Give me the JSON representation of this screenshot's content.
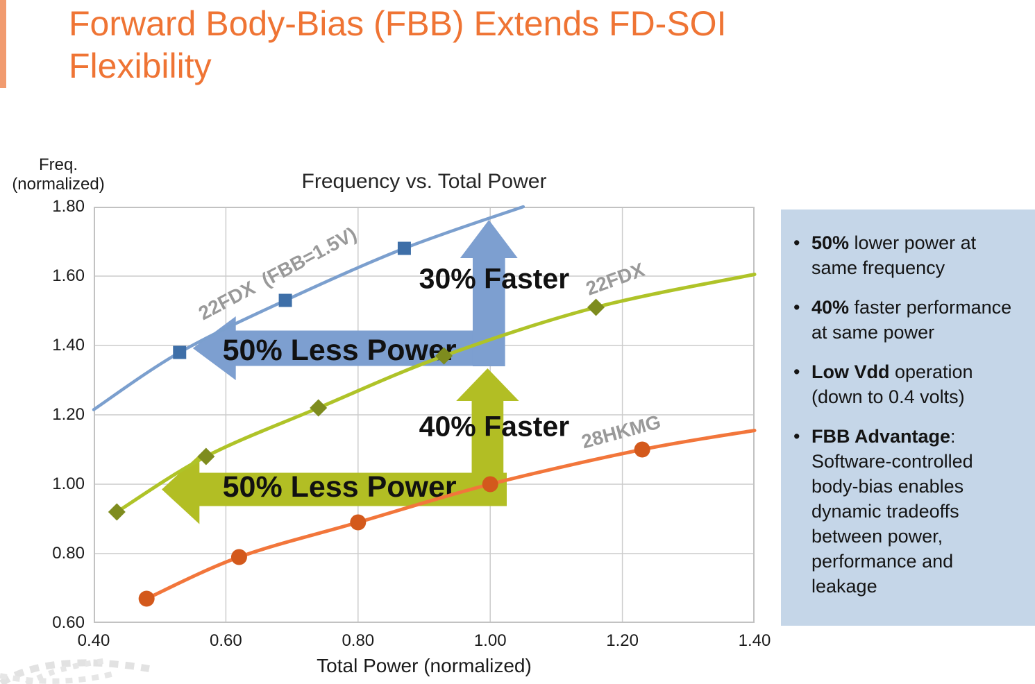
{
  "page": {
    "accent_color": "#F19B6F",
    "background": "#ffffff"
  },
  "title": {
    "line1": "Forward Body-Bias (FBB) Extends FD-SOI",
    "line2": "Flexibility",
    "color": "#EF7434"
  },
  "panel": {
    "bg": "#C5D6E8",
    "bullets": [
      {
        "bold": "50%",
        "rest": " lower power at same frequency"
      },
      {
        "bold": "40%",
        "rest": " faster performance at same power"
      },
      {
        "bold": "Low Vdd",
        "rest": " operation (down to 0.4 volts)"
      },
      {
        "bold": "FBB Advantage",
        "rest": ": Software-controlled body-bias enables dynamic tradeoffs between power, performance and leakage"
      }
    ]
  },
  "chart_data": {
    "type": "line",
    "title": "Frequency vs. Total Power",
    "xlabel": "Total Power (normalized)",
    "ylabel": "Freq. (normalized)",
    "ylabel_lines": [
      "Freq.",
      "(normalized)"
    ],
    "xlim": [
      0.4,
      1.4
    ],
    "ylim": [
      0.6,
      1.8
    ],
    "xticks": [
      "0.40",
      "0.60",
      "0.80",
      "1.00",
      "1.20",
      "1.40"
    ],
    "yticks": [
      "0.60",
      "0.80",
      "1.00",
      "1.20",
      "1.40",
      "1.60",
      "1.80"
    ],
    "grid": true,
    "series": [
      {
        "name": "28HKMG",
        "color": "#F2763B",
        "marker_color": "#D3591C",
        "marker": "circle",
        "width": 5,
        "path": [
          [
            0.48,
            0.67
          ],
          [
            0.62,
            0.79
          ],
          [
            0.8,
            0.89
          ],
          [
            1.0,
            1.0
          ],
          [
            1.23,
            1.1
          ],
          [
            1.4,
            1.155
          ]
        ],
        "markers": [
          [
            0.48,
            0.67
          ],
          [
            0.62,
            0.79
          ],
          [
            0.8,
            0.89
          ],
          [
            1.0,
            1.0
          ],
          [
            1.23,
            1.1
          ]
        ],
        "label": "28HKMG",
        "label_x": 1.198,
        "label_y": 1.152,
        "label_angle": -15
      },
      {
        "name": "22FDX",
        "color": "#AFC328",
        "marker_color": "#7E8C1E",
        "marker": "diamond",
        "width": 5,
        "path": [
          [
            0.435,
            0.92
          ],
          [
            0.57,
            1.08
          ],
          [
            0.74,
            1.22
          ],
          [
            0.93,
            1.37
          ],
          [
            1.16,
            1.51
          ],
          [
            1.4,
            1.605
          ]
        ],
        "markers": [
          [
            0.435,
            0.92
          ],
          [
            0.57,
            1.08
          ],
          [
            0.74,
            1.22
          ],
          [
            0.93,
            1.37
          ],
          [
            1.16,
            1.51
          ]
        ],
        "label": "22FDX",
        "label_x": 1.189,
        "label_y": 1.592,
        "label_angle": -20
      },
      {
        "name": "22FDX (FBB=1.5V)",
        "color": "#7B9FCE",
        "marker_color": "#3E6FA8",
        "marker": "square",
        "width": 4.5,
        "path": [
          [
            0.4,
            1.215
          ],
          [
            0.53,
            1.38
          ],
          [
            0.69,
            1.53
          ],
          [
            0.87,
            1.68
          ],
          [
            1.05,
            1.8
          ]
        ],
        "markers": [
          [
            0.53,
            1.38
          ],
          [
            0.69,
            1.53
          ],
          [
            0.87,
            1.68
          ]
        ],
        "label": "22FDX  (FBB=1.5V)",
        "label_x": 0.678,
        "label_y": 1.608,
        "label_angle": -28
      }
    ],
    "annotations": {
      "arrows": [
        {
          "type": "left",
          "color": "#7D9FD0",
          "tip_x": 0.55,
          "center_y": 1.392,
          "head_base_x": 0.615,
          "head_half": 0.092,
          "band_half": 0.051,
          "band_end_x": 1.018
        },
        {
          "type": "up",
          "color": "#7D9FD0",
          "center_x": 0.998,
          "tip_y": 1.762,
          "head_base_y": 1.652,
          "head_half": 0.0435,
          "band_half": 0.0245,
          "band_end_y": 1.34
        },
        {
          "type": "left",
          "color": "#B2BE24",
          "tip_x": 0.503,
          "center_y": 0.985,
          "head_base_x": 0.56,
          "head_half": 0.1,
          "band_half": 0.048,
          "band_end_x": 1.025
        },
        {
          "type": "up",
          "color": "#B2BE24",
          "center_x": 0.996,
          "tip_y": 1.334,
          "head_base_y": 1.24,
          "head_half": 0.0475,
          "band_half": 0.024,
          "band_end_y": 0.94
        }
      ],
      "texts": [
        {
          "text": "30% Faster",
          "x": 1.006,
          "y": 1.594,
          "size": 41
        },
        {
          "text": "50% Less Power",
          "x": 0.772,
          "y": 1.388,
          "size": 43
        },
        {
          "text": "40% Faster",
          "x": 1.006,
          "y": 1.168,
          "size": 41
        },
        {
          "text": "50% Less Power",
          "x": 0.772,
          "y": 0.994,
          "size": 43
        }
      ]
    },
    "label_color": "#999999",
    "grid_color": "#cccccc",
    "border_color": "#c2c2c2"
  }
}
